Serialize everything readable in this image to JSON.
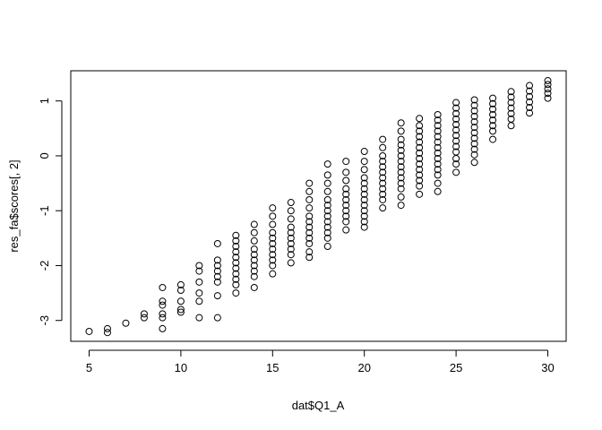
{
  "chart_data": {
    "type": "scatter",
    "xlabel": "dat$Q1_A",
    "ylabel": "res_fa$scores[, 2]",
    "xlim": [
      4,
      31
    ],
    "ylim": [
      -3.38,
      1.55
    ],
    "xticks": [
      5,
      10,
      15,
      20,
      25,
      30
    ],
    "yticks": [
      -3,
      -2,
      -1,
      0,
      1
    ],
    "color": "#000000",
    "x": [
      5,
      6,
      6,
      7,
      8,
      8,
      9,
      9,
      9,
      9,
      9,
      9,
      10,
      10,
      10,
      10,
      10,
      11,
      11,
      11,
      11,
      11,
      11,
      12,
      12,
      12,
      12,
      12,
      12,
      12,
      12,
      13,
      13,
      13,
      13,
      13,
      13,
      13,
      13,
      13,
      13,
      13,
      14,
      14,
      14,
      14,
      14,
      14,
      14,
      14,
      14,
      14,
      15,
      15,
      15,
      15,
      15,
      15,
      15,
      15,
      15,
      15,
      15,
      16,
      16,
      16,
      16,
      16,
      16,
      16,
      16,
      16,
      16,
      17,
      17,
      17,
      17,
      17,
      17,
      17,
      17,
      17,
      17,
      17,
      17,
      18,
      18,
      18,
      18,
      18,
      18,
      18,
      18,
      18,
      18,
      18,
      18,
      18,
      19,
      19,
      19,
      19,
      19,
      19,
      19,
      19,
      19,
      19,
      19,
      20,
      20,
      20,
      20,
      20,
      20,
      20,
      20,
      20,
      20,
      20,
      20,
      20,
      21,
      21,
      21,
      21,
      21,
      21,
      21,
      21,
      21,
      21,
      21,
      21,
      22,
      22,
      22,
      22,
      22,
      22,
      22,
      22,
      22,
      22,
      22,
      22,
      22,
      22,
      23,
      23,
      23,
      23,
      23,
      23,
      23,
      23,
      23,
      23,
      23,
      23,
      23,
      23,
      24,
      24,
      24,
      24,
      24,
      24,
      24,
      24,
      24,
      24,
      24,
      24,
      24,
      24,
      25,
      25,
      25,
      25,
      25,
      25,
      25,
      25,
      25,
      25,
      25,
      25,
      25,
      26,
      26,
      26,
      26,
      26,
      26,
      26,
      26,
      26,
      26,
      26,
      26,
      27,
      27,
      27,
      27,
      27,
      27,
      27,
      27,
      28,
      28,
      28,
      28,
      28,
      28,
      28,
      29,
      29,
      29,
      29,
      29,
      29,
      30,
      30,
      30,
      30,
      30
    ],
    "values": [
      -3.2,
      -3.15,
      -3.22,
      -3.05,
      -2.88,
      -2.95,
      -2.4,
      -2.65,
      -2.72,
      -2.88,
      -2.95,
      -3.15,
      -2.35,
      -2.45,
      -2.65,
      -2.8,
      -2.85,
      -2.0,
      -2.1,
      -2.3,
      -2.5,
      -2.65,
      -2.95,
      -1.6,
      -1.9,
      -2.0,
      -2.1,
      -2.2,
      -2.3,
      -2.55,
      -2.95,
      -1.45,
      -1.55,
      -1.65,
      -1.75,
      -1.85,
      -1.95,
      -2.05,
      -2.15,
      -2.25,
      -2.35,
      -2.5,
      -1.25,
      -1.4,
      -1.55,
      -1.7,
      -1.8,
      -1.9,
      -2.0,
      -2.1,
      -2.2,
      -2.4,
      -0.95,
      -1.1,
      -1.25,
      -1.4,
      -1.5,
      -1.6,
      -1.7,
      -1.8,
      -1.9,
      -2.0,
      -2.15,
      -0.85,
      -1.0,
      -1.15,
      -1.3,
      -1.4,
      -1.5,
      -1.6,
      -1.7,
      -1.8,
      -1.95,
      -0.5,
      -0.65,
      -0.8,
      -0.95,
      -1.1,
      -1.2,
      -1.3,
      -1.4,
      -1.5,
      -1.6,
      -1.75,
      -1.85,
      -0.15,
      -0.35,
      -0.5,
      -0.65,
      -0.8,
      -0.9,
      -1.0,
      -1.1,
      -1.2,
      -1.3,
      -1.4,
      -1.5,
      -1.65,
      -0.1,
      -0.3,
      -0.45,
      -0.6,
      -0.7,
      -0.8,
      -0.9,
      -1.0,
      -1.1,
      -1.2,
      -1.35,
      0.08,
      -0.1,
      -0.25,
      -0.4,
      -0.5,
      -0.6,
      -0.7,
      -0.8,
      -0.9,
      -1.0,
      -1.1,
      -1.2,
      -1.3,
      0.3,
      0.15,
      0.0,
      -0.1,
      -0.2,
      -0.3,
      -0.4,
      -0.5,
      -0.6,
      -0.7,
      -0.8,
      -0.95,
      0.6,
      0.45,
      0.3,
      0.2,
      0.1,
      0.0,
      -0.1,
      -0.2,
      -0.3,
      -0.4,
      -0.5,
      -0.6,
      -0.75,
      -0.9,
      0.68,
      0.55,
      0.45,
      0.35,
      0.25,
      0.15,
      0.05,
      -0.05,
      -0.15,
      -0.25,
      -0.35,
      -0.45,
      -0.55,
      -0.7,
      0.75,
      0.65,
      0.55,
      0.45,
      0.35,
      0.25,
      0.15,
      0.05,
      -0.05,
      -0.15,
      -0.25,
      -0.35,
      -0.5,
      -0.65,
      0.97,
      0.87,
      0.77,
      0.67,
      0.57,
      0.47,
      0.37,
      0.27,
      0.17,
      0.07,
      -0.05,
      -0.15,
      -0.3,
      1.02,
      0.92,
      0.82,
      0.72,
      0.62,
      0.52,
      0.42,
      0.32,
      0.22,
      0.12,
      0.02,
      -0.12,
      1.05,
      0.95,
      0.85,
      0.75,
      0.65,
      0.55,
      0.45,
      0.3,
      1.17,
      1.07,
      0.97,
      0.87,
      0.77,
      0.67,
      0.55,
      1.28,
      1.18,
      1.08,
      0.98,
      0.88,
      0.78,
      1.37,
      1.3,
      1.22,
      1.14,
      1.05
    ]
  }
}
